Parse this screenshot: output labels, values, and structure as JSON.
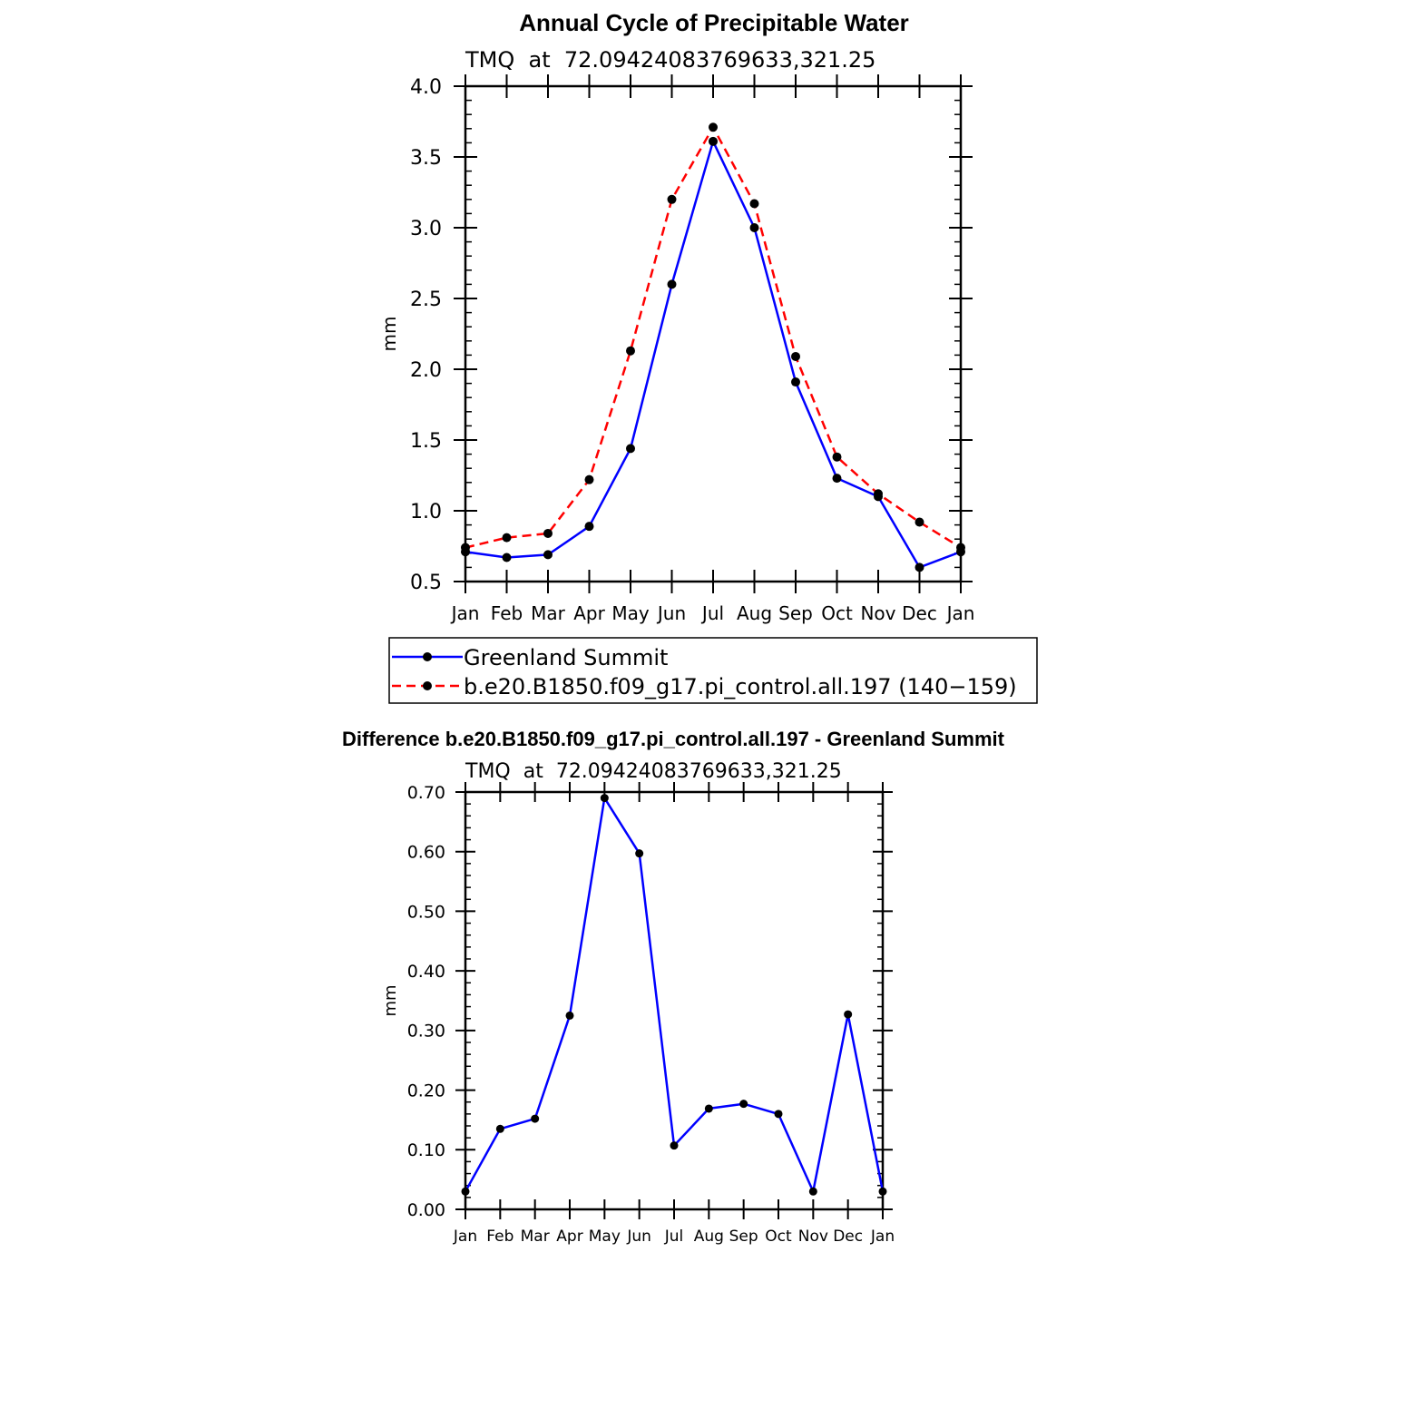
{
  "chart_data": [
    {
      "type": "line",
      "title": "Annual Cycle of Precipitable Water",
      "subtitle": "TMQ  at  72.09424083769633,321.25",
      "ylabel": "mm",
      "xlabel": "",
      "categories": [
        "Jan",
        "Feb",
        "Mar",
        "Apr",
        "May",
        "Jun",
        "Jul",
        "Aug",
        "Sep",
        "Oct",
        "Nov",
        "Dec",
        "Jan"
      ],
      "ylim": [
        0.5,
        4.0
      ],
      "yticks": [
        "0.5",
        "1.0",
        "1.5",
        "2.0",
        "2.5",
        "3.0",
        "3.5",
        "4.0"
      ],
      "ytick_values": [
        0.5,
        1.0,
        1.5,
        2.0,
        2.5,
        3.0,
        3.5,
        4.0
      ],
      "series": [
        {
          "name": "Greenland Summit",
          "color": "#0000ff",
          "dash": "solid",
          "values": [
            0.71,
            0.67,
            0.69,
            0.89,
            1.44,
            2.6,
            3.61,
            3.0,
            1.91,
            1.23,
            1.1,
            0.6,
            0.71
          ]
        },
        {
          "name": "b.e20.B1850.f09_g17.pi_control.all.197 (140−159)",
          "color": "#ff0000",
          "dash": "dashed",
          "values": [
            0.74,
            0.81,
            0.84,
            1.22,
            2.13,
            3.2,
            3.71,
            3.17,
            2.09,
            1.38,
            1.12,
            0.92,
            0.74
          ]
        }
      ],
      "legend": "below"
    },
    {
      "type": "line",
      "title": "Difference b.e20.B1850.f09_g17.pi_control.all.197 - Greenland Summit",
      "subtitle": "TMQ  at  72.09424083769633,321.25",
      "ylabel": "mm",
      "xlabel": "",
      "categories": [
        "Jan",
        "Feb",
        "Mar",
        "Apr",
        "May",
        "Jun",
        "Jul",
        "Aug",
        "Sep",
        "Oct",
        "Nov",
        "Dec",
        "Jan"
      ],
      "ylim": [
        0.0,
        0.7
      ],
      "yticks": [
        "0.00",
        "0.10",
        "0.20",
        "0.30",
        "0.40",
        "0.50",
        "0.60",
        "0.70"
      ],
      "ytick_values": [
        0.0,
        0.1,
        0.2,
        0.3,
        0.4,
        0.5,
        0.6,
        0.7
      ],
      "series": [
        {
          "color": "#0000ff",
          "dash": "solid",
          "values": [
            0.03,
            0.135,
            0.152,
            0.325,
            0.69,
            0.597,
            0.107,
            0.169,
            0.177,
            0.16,
            0.03,
            0.327,
            0.03
          ]
        }
      ]
    }
  ]
}
